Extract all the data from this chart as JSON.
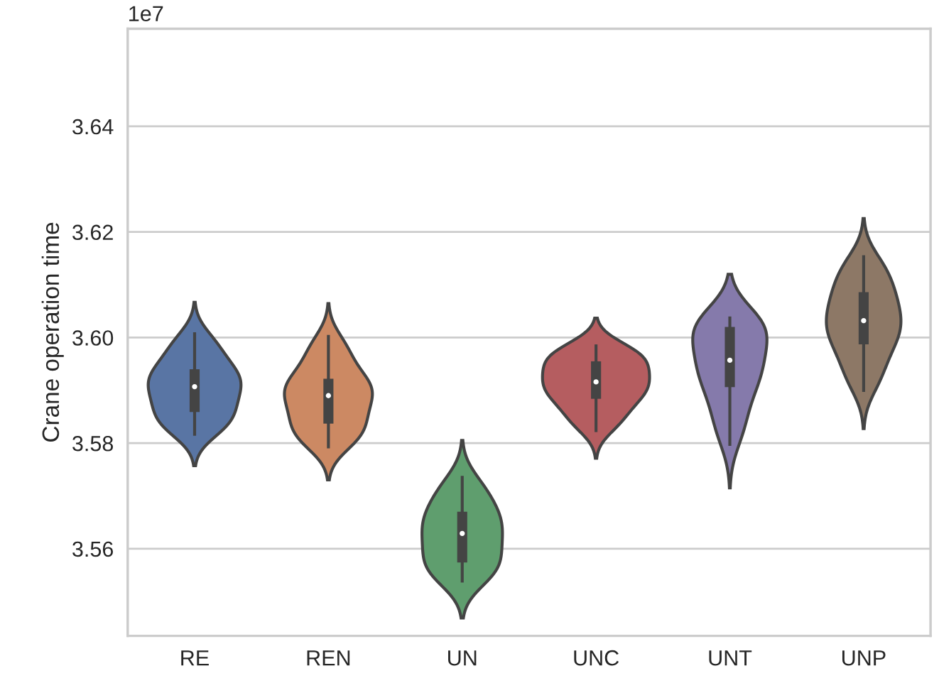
{
  "chart_data": {
    "type": "box",
    "categories": [
      "RE",
      "REN",
      "UN",
      "UNC",
      "UNT",
      "UNP"
    ],
    "boxes": [
      {
        "low": 3.5814,
        "q1": 3.5859,
        "median": 3.5907,
        "q3": 3.594,
        "high": 3.601
      },
      {
        "low": 3.579,
        "q1": 3.5837,
        "median": 3.589,
        "q3": 3.5922,
        "high": 3.6005
      },
      {
        "low": 3.5536,
        "q1": 3.5574,
        "median": 3.5629,
        "q3": 3.567,
        "high": 3.5738
      },
      {
        "low": 3.5821,
        "q1": 3.5884,
        "median": 3.5916,
        "q3": 3.5955,
        "high": 3.5987
      },
      {
        "low": 3.5795,
        "q1": 3.5906,
        "median": 3.5957,
        "q3": 3.602,
        "high": 3.604
      },
      {
        "low": 3.5897,
        "q1": 3.5987,
        "median": 3.6032,
        "q3": 3.6086,
        "high": 3.6156
      }
    ],
    "ylabel": "Crane operation time",
    "ylim": [
      3.5435,
      3.6585
    ],
    "yticks": [
      3.56,
      3.58,
      {
        "value": 3.6,
        "label": "3.60"
      },
      3.62,
      3.64
    ],
    "grid": "y",
    "annotations": [
      "1e7"
    ]
  }
}
